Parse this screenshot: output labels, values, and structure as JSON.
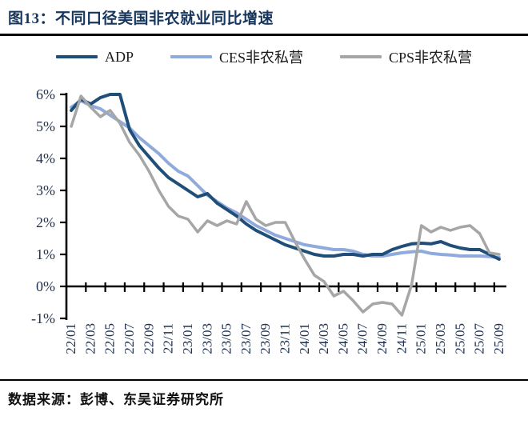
{
  "header": {
    "title": "图13：不同口径美国非农就业同比增速"
  },
  "legend": [
    {
      "id": "adp",
      "label": "ADP",
      "color": "#1F4E79"
    },
    {
      "id": "ces",
      "label": "CES非农私营",
      "color": "#8FAADC"
    },
    {
      "id": "cps",
      "label": "CPS非农私营",
      "color": "#A6A6A6"
    }
  ],
  "footer": {
    "source": "数据来源：彭博、东吴证券研究所"
  },
  "chart_data": {
    "type": "line",
    "title": "不同口径美国非农就业同比增速",
    "xlabel": "",
    "ylabel": "",
    "ylim": [
      -1,
      6
    ],
    "y_ticks": [
      "6%",
      "5%",
      "4%",
      "3%",
      "2%",
      "1%",
      "0%",
      "-1%"
    ],
    "y_tick_values": [
      6,
      5,
      4,
      3,
      2,
      1,
      0,
      -1
    ],
    "grid": false,
    "legend_position": "top",
    "x": [
      "22/01",
      "22/02",
      "22/03",
      "22/04",
      "22/05",
      "22/06",
      "22/07",
      "22/08",
      "22/09",
      "22/10",
      "22/11",
      "22/12",
      "23/01",
      "23/02",
      "23/03",
      "23/04",
      "23/05",
      "23/06",
      "23/07",
      "23/08",
      "23/09",
      "23/10",
      "23/11",
      "23/12",
      "24/01",
      "24/02",
      "24/03",
      "24/04",
      "24/05",
      "24/06",
      "24/07",
      "24/08",
      "24/09",
      "24/10",
      "24/11",
      "24/12",
      "25/01",
      "25/02",
      "25/03",
      "25/04",
      "25/05",
      "25/06",
      "25/07",
      "25/08",
      "25/09"
    ],
    "x_tick_labels": [
      "22/01",
      "22/03",
      "22/05",
      "22/07",
      "22/09",
      "22/11",
      "23/01",
      "23/03",
      "23/05",
      "23/07",
      "23/09",
      "23/11",
      "24/01",
      "24/03",
      "24/05",
      "24/07",
      "24/09",
      "24/11",
      "25/01",
      "25/03",
      "25/05",
      "25/07",
      "25/09"
    ],
    "series": [
      {
        "name": "ADP",
        "color": "#1F4E79",
        "width": 4,
        "values": [
          5.5,
          5.85,
          5.7,
          5.9,
          6.0,
          6.0,
          4.9,
          4.4,
          4.05,
          3.7,
          3.4,
          3.2,
          3.0,
          2.8,
          2.9,
          2.6,
          2.4,
          2.2,
          1.95,
          1.75,
          1.6,
          1.45,
          1.3,
          1.2,
          1.1,
          1.0,
          0.95,
          0.95,
          1.0,
          1.0,
          0.95,
          1.0,
          1.0,
          1.15,
          1.25,
          1.33,
          1.35,
          1.33,
          1.4,
          1.28,
          1.2,
          1.15,
          1.15,
          1.0,
          0.85
        ]
      },
      {
        "name": "CES非农私营",
        "color": "#8FAADC",
        "width": 4,
        "values": [
          5.6,
          5.8,
          5.65,
          5.55,
          5.35,
          5.15,
          4.95,
          4.65,
          4.4,
          4.15,
          3.85,
          3.6,
          3.45,
          3.15,
          2.85,
          2.65,
          2.45,
          2.3,
          2.1,
          1.9,
          1.75,
          1.6,
          1.5,
          1.4,
          1.3,
          1.25,
          1.2,
          1.15,
          1.15,
          1.1,
          1.0,
          0.95,
          0.95,
          1.0,
          1.05,
          1.08,
          1.1,
          1.03,
          1.0,
          0.98,
          0.95,
          0.95,
          0.95,
          0.93,
          0.9
        ]
      },
      {
        "name": "CPS非农私营",
        "color": "#A6A6A6",
        "width": 3.5,
        "values": [
          5.0,
          5.95,
          5.6,
          5.3,
          5.5,
          5.1,
          4.5,
          4.1,
          3.6,
          3.0,
          2.5,
          2.2,
          2.1,
          1.7,
          2.05,
          1.9,
          2.05,
          1.95,
          2.65,
          2.1,
          1.9,
          2.0,
          2.0,
          1.4,
          0.85,
          0.35,
          0.15,
          -0.3,
          -0.15,
          -0.45,
          -0.8,
          -0.55,
          -0.5,
          -0.55,
          -0.9,
          0.05,
          1.9,
          1.7,
          1.85,
          1.75,
          1.85,
          1.9,
          1.65,
          1.05,
          1.0
        ]
      }
    ]
  }
}
